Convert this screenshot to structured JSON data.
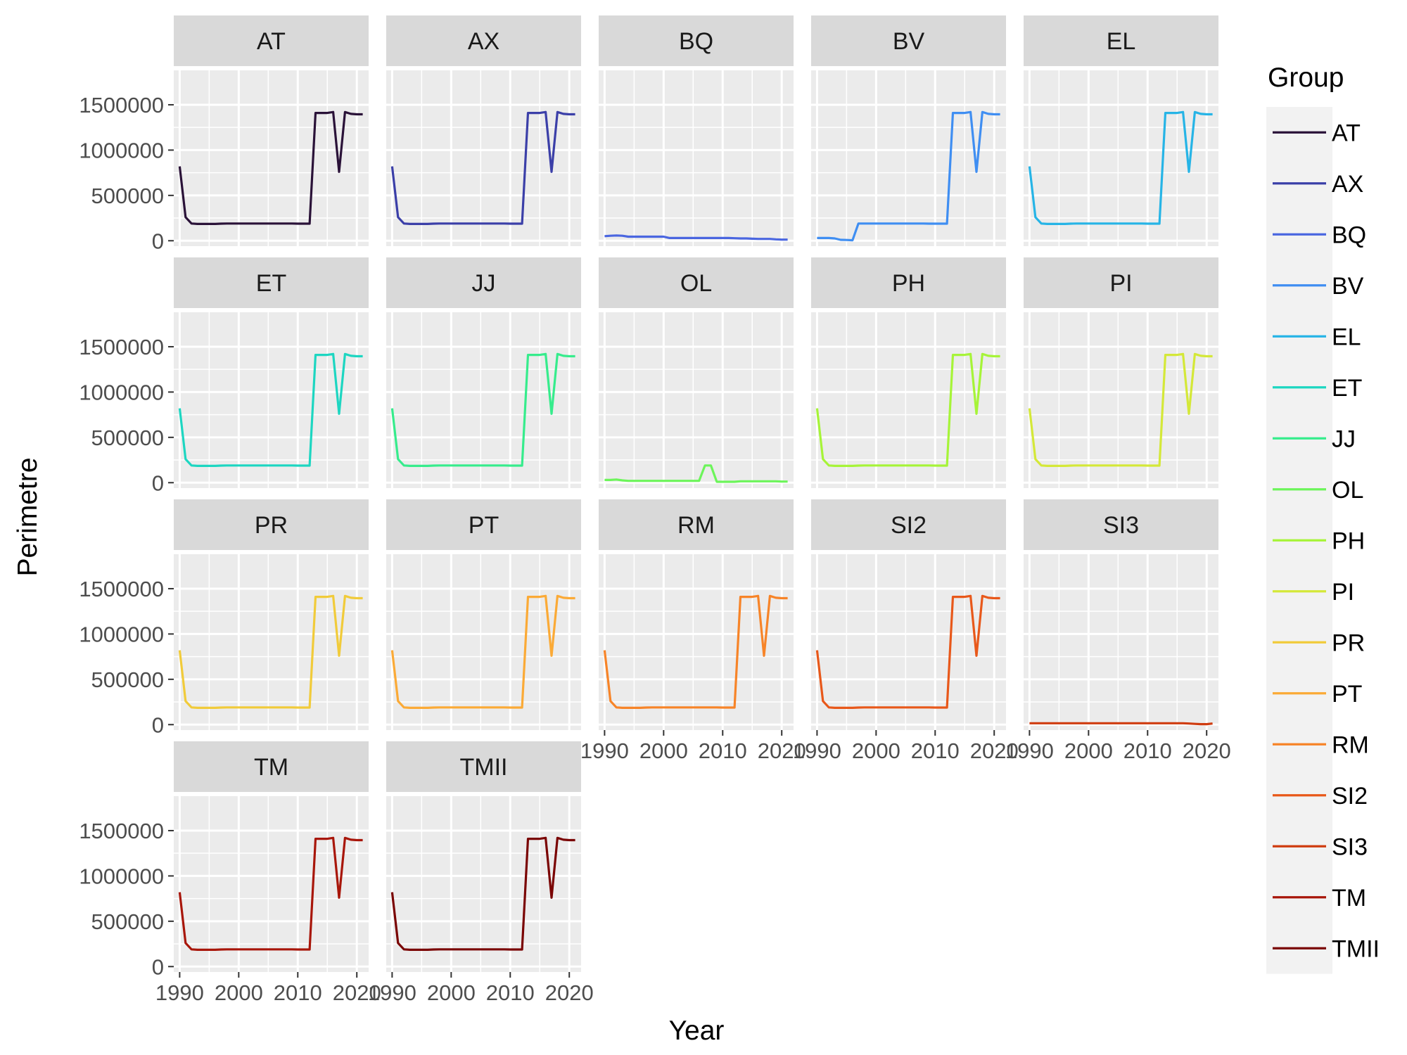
{
  "chart_data": {
    "type": "line",
    "layout": "facet-wrap",
    "xlabel": "Year",
    "ylabel": "Perimetre",
    "xlim": [
      1989,
      2022
    ],
    "ylim": [
      -60000,
      1880000
    ],
    "x_ticks": [
      1990,
      2000,
      2010,
      2020
    ],
    "y_ticks": [
      0,
      500000,
      1000000,
      1500000
    ],
    "grid": true,
    "legend": {
      "title": "Group",
      "position": "right"
    },
    "x": [
      1990,
      1991,
      1992,
      1993,
      1994,
      1995,
      1996,
      1997,
      1998,
      1999,
      2000,
      2001,
      2002,
      2003,
      2004,
      2005,
      2006,
      2007,
      2008,
      2009,
      2010,
      2011,
      2012,
      2013,
      2014,
      2015,
      2016,
      2017,
      2018,
      2019,
      2020,
      2021
    ],
    "series": [
      {
        "name": "AT",
        "color": "#2a1238",
        "values": [
          820000,
          260000,
          190000,
          185000,
          185000,
          185000,
          185000,
          188000,
          190000,
          190000,
          190000,
          190000,
          190000,
          190000,
          190000,
          190000,
          190000,
          190000,
          190000,
          190000,
          188000,
          188000,
          188000,
          1410000,
          1410000,
          1410000,
          1420000,
          760000,
          1420000,
          1400000,
          1395000,
          1395000
        ]
      },
      {
        "name": "AX",
        "color": "#3b3fa8",
        "values": [
          820000,
          260000,
          190000,
          185000,
          185000,
          185000,
          185000,
          188000,
          190000,
          190000,
          190000,
          190000,
          190000,
          190000,
          190000,
          190000,
          190000,
          190000,
          190000,
          190000,
          188000,
          188000,
          188000,
          1410000,
          1410000,
          1410000,
          1420000,
          760000,
          1420000,
          1400000,
          1395000,
          1395000
        ]
      },
      {
        "name": "BQ",
        "color": "#4a66e0",
        "values": [
          50000,
          55000,
          58000,
          55000,
          45000,
          45000,
          45000,
          45000,
          45000,
          45000,
          45000,
          30000,
          30000,
          30000,
          30000,
          30000,
          30000,
          30000,
          30000,
          30000,
          30000,
          30000,
          28000,
          25000,
          25000,
          22000,
          20000,
          20000,
          20000,
          15000,
          12000,
          12000
        ]
      },
      {
        "name": "BV",
        "color": "#3f8ef2",
        "values": [
          30000,
          30000,
          30000,
          25000,
          10000,
          8000,
          5000,
          190000,
          190000,
          190000,
          190000,
          190000,
          190000,
          190000,
          190000,
          190000,
          190000,
          190000,
          190000,
          188000,
          188000,
          188000,
          188000,
          1410000,
          1410000,
          1410000,
          1420000,
          760000,
          1420000,
          1400000,
          1395000,
          1395000
        ]
      },
      {
        "name": "EL",
        "color": "#26b4e6",
        "values": [
          820000,
          260000,
          190000,
          185000,
          185000,
          185000,
          185000,
          188000,
          190000,
          190000,
          190000,
          190000,
          190000,
          190000,
          190000,
          190000,
          190000,
          190000,
          190000,
          190000,
          188000,
          188000,
          188000,
          1410000,
          1410000,
          1410000,
          1420000,
          760000,
          1420000,
          1400000,
          1395000,
          1395000
        ]
      },
      {
        "name": "ET",
        "color": "#1dd6c1",
        "values": [
          820000,
          260000,
          190000,
          185000,
          185000,
          185000,
          185000,
          188000,
          190000,
          190000,
          190000,
          190000,
          190000,
          190000,
          190000,
          190000,
          190000,
          190000,
          190000,
          190000,
          188000,
          188000,
          188000,
          1410000,
          1410000,
          1410000,
          1420000,
          760000,
          1420000,
          1400000,
          1395000,
          1395000
        ]
      },
      {
        "name": "JJ",
        "color": "#36ec8c",
        "values": [
          820000,
          260000,
          190000,
          185000,
          185000,
          185000,
          185000,
          188000,
          190000,
          190000,
          190000,
          190000,
          190000,
          190000,
          190000,
          190000,
          190000,
          190000,
          190000,
          190000,
          188000,
          188000,
          188000,
          1410000,
          1410000,
          1410000,
          1420000,
          760000,
          1420000,
          1400000,
          1395000,
          1395000
        ]
      },
      {
        "name": "OL",
        "color": "#6cf55a",
        "values": [
          30000,
          30000,
          35000,
          25000,
          20000,
          20000,
          20000,
          20000,
          20000,
          20000,
          20000,
          20000,
          20000,
          20000,
          20000,
          20000,
          20000,
          190000,
          190000,
          10000,
          10000,
          10000,
          10000,
          15000,
          15000,
          15000,
          15000,
          15000,
          15000,
          15000,
          12000,
          12000
        ]
      },
      {
        "name": "PH",
        "color": "#a6f438",
        "values": [
          820000,
          260000,
          190000,
          185000,
          185000,
          185000,
          185000,
          188000,
          190000,
          190000,
          190000,
          190000,
          190000,
          190000,
          190000,
          190000,
          190000,
          190000,
          190000,
          190000,
          188000,
          188000,
          188000,
          1410000,
          1410000,
          1410000,
          1420000,
          760000,
          1420000,
          1400000,
          1395000,
          1395000
        ]
      },
      {
        "name": "PI",
        "color": "#d4e838",
        "values": [
          820000,
          260000,
          190000,
          185000,
          185000,
          185000,
          185000,
          188000,
          190000,
          190000,
          190000,
          190000,
          190000,
          190000,
          190000,
          190000,
          190000,
          190000,
          190000,
          190000,
          188000,
          188000,
          188000,
          1410000,
          1410000,
          1410000,
          1420000,
          760000,
          1420000,
          1400000,
          1395000,
          1395000
        ]
      },
      {
        "name": "PR",
        "color": "#f1cb3a",
        "values": [
          820000,
          260000,
          190000,
          185000,
          185000,
          185000,
          185000,
          188000,
          190000,
          190000,
          190000,
          190000,
          190000,
          190000,
          190000,
          190000,
          190000,
          190000,
          190000,
          190000,
          188000,
          188000,
          188000,
          1410000,
          1410000,
          1410000,
          1420000,
          760000,
          1420000,
          1400000,
          1395000,
          1395000
        ]
      },
      {
        "name": "PT",
        "color": "#fbaa36",
        "values": [
          820000,
          260000,
          190000,
          185000,
          185000,
          185000,
          185000,
          188000,
          190000,
          190000,
          190000,
          190000,
          190000,
          190000,
          190000,
          190000,
          190000,
          190000,
          190000,
          190000,
          188000,
          188000,
          188000,
          1410000,
          1410000,
          1410000,
          1420000,
          760000,
          1420000,
          1400000,
          1395000,
          1395000
        ]
      },
      {
        "name": "RM",
        "color": "#f78428",
        "values": [
          820000,
          260000,
          190000,
          185000,
          185000,
          185000,
          185000,
          188000,
          190000,
          190000,
          190000,
          190000,
          190000,
          190000,
          190000,
          190000,
          190000,
          190000,
          190000,
          190000,
          188000,
          188000,
          188000,
          1410000,
          1410000,
          1410000,
          1420000,
          760000,
          1420000,
          1400000,
          1395000,
          1395000
        ]
      },
      {
        "name": "SI2",
        "color": "#e8581a",
        "values": [
          820000,
          260000,
          190000,
          185000,
          185000,
          185000,
          185000,
          188000,
          190000,
          190000,
          190000,
          190000,
          190000,
          190000,
          190000,
          190000,
          190000,
          190000,
          190000,
          190000,
          188000,
          188000,
          188000,
          1410000,
          1410000,
          1410000,
          1420000,
          760000,
          1420000,
          1400000,
          1395000,
          1395000
        ]
      },
      {
        "name": "SI3",
        "color": "#cf3c10",
        "values": [
          15000,
          15000,
          15000,
          15000,
          15000,
          15000,
          15000,
          15000,
          15000,
          15000,
          15000,
          15000,
          15000,
          15000,
          15000,
          15000,
          15000,
          15000,
          15000,
          15000,
          15000,
          15000,
          15000,
          15000,
          15000,
          15000,
          15000,
          12000,
          8000,
          5000,
          5000,
          12000
        ]
      },
      {
        "name": "TM",
        "color": "#a8160a",
        "values": [
          820000,
          260000,
          190000,
          185000,
          185000,
          185000,
          185000,
          188000,
          190000,
          190000,
          190000,
          190000,
          190000,
          190000,
          190000,
          190000,
          190000,
          190000,
          190000,
          190000,
          188000,
          188000,
          188000,
          1410000,
          1410000,
          1410000,
          1420000,
          760000,
          1420000,
          1400000,
          1395000,
          1395000
        ]
      },
      {
        "name": "TMII",
        "color": "#7a0403",
        "values": [
          820000,
          260000,
          190000,
          185000,
          185000,
          185000,
          185000,
          188000,
          190000,
          190000,
          190000,
          190000,
          190000,
          190000,
          190000,
          190000,
          190000,
          190000,
          190000,
          190000,
          188000,
          188000,
          188000,
          1410000,
          1410000,
          1410000,
          1420000,
          760000,
          1420000,
          1400000,
          1395000,
          1395000
        ]
      }
    ]
  }
}
